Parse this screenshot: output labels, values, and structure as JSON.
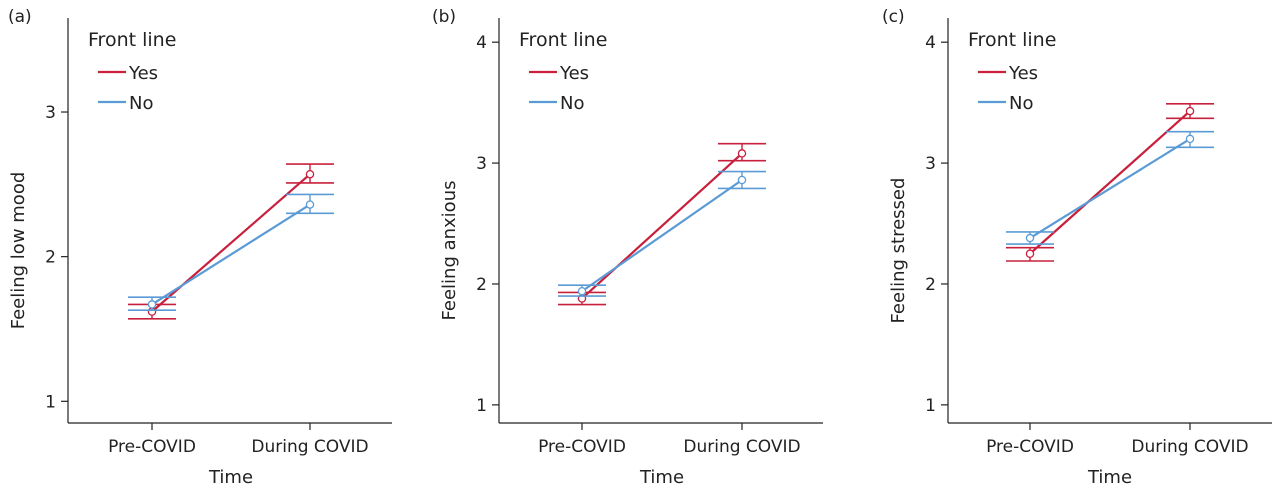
{
  "colors": {
    "yes": "#c8203c",
    "no": "#5b9bd5",
    "axis": "#222222"
  },
  "chart_data": [
    {
      "type": "line",
      "panel_label": "(a)",
      "xlabel": "Time",
      "ylabel": "Feeling low mood",
      "categories": [
        "Pre-COVID",
        "During COVID"
      ],
      "ylim": [
        0.85,
        3.65
      ],
      "yticks": [
        1,
        2,
        3
      ],
      "legend": {
        "title": "Front line",
        "placement": "top-left"
      },
      "series": [
        {
          "name": "Yes",
          "color_key": "yes",
          "values": [
            1.62,
            2.57
          ],
          "lower": [
            1.57,
            2.51
          ],
          "upper": [
            1.67,
            2.64
          ]
        },
        {
          "name": "No",
          "color_key": "no",
          "values": [
            1.67,
            2.36
          ],
          "lower": [
            1.63,
            2.3
          ],
          "upper": [
            1.72,
            2.43
          ]
        }
      ]
    },
    {
      "type": "line",
      "panel_label": "(b)",
      "xlabel": "Time",
      "ylabel": "Feeling anxious",
      "categories": [
        "Pre-COVID",
        "During COVID"
      ],
      "ylim": [
        0.85,
        4.2
      ],
      "yticks": [
        1,
        2,
        3,
        4
      ],
      "legend": {
        "title": "Front line",
        "placement": "top-left"
      },
      "series": [
        {
          "name": "Yes",
          "color_key": "yes",
          "values": [
            1.88,
            3.08
          ],
          "lower": [
            1.83,
            3.02
          ],
          "upper": [
            1.93,
            3.16
          ]
        },
        {
          "name": "No",
          "color_key": "no",
          "values": [
            1.94,
            2.86
          ],
          "lower": [
            1.9,
            2.79
          ],
          "upper": [
            1.99,
            2.93
          ]
        }
      ]
    },
    {
      "type": "line",
      "panel_label": "(c)",
      "xlabel": "Time",
      "ylabel": "Feeling stressed",
      "categories": [
        "Pre-COVID",
        "During COVID"
      ],
      "ylim": [
        0.85,
        4.2
      ],
      "yticks": [
        1,
        2,
        3,
        4
      ],
      "legend": {
        "title": "Front line",
        "placement": "top-left"
      },
      "series": [
        {
          "name": "Yes",
          "color_key": "yes",
          "values": [
            2.25,
            3.43
          ],
          "lower": [
            2.19,
            3.37
          ],
          "upper": [
            2.3,
            3.49
          ]
        },
        {
          "name": "No",
          "color_key": "no",
          "values": [
            2.38,
            3.2
          ],
          "lower": [
            2.33,
            3.13
          ],
          "upper": [
            2.43,
            3.26
          ]
        }
      ]
    }
  ]
}
